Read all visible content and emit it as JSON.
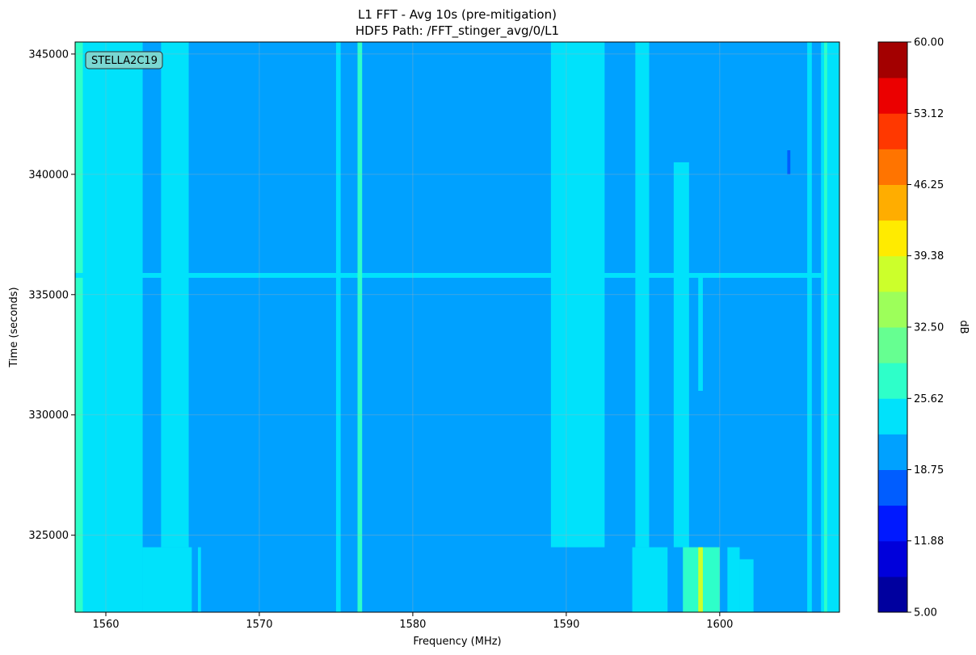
{
  "chart_data": {
    "type": "heatmap",
    "title": "L1 FFT - Avg 10s (pre-mitigation)",
    "subtitle": "HDF5 Path: /FFT_stinger_avg/0/L1",
    "xlabel": "Frequency (MHz)",
    "ylabel": "Time (seconds)",
    "xlim": [
      1558.0,
      1607.8
    ],
    "ylim": [
      321800,
      345500
    ],
    "x_ticks": [
      1560,
      1570,
      1580,
      1590,
      1600
    ],
    "y_ticks": [
      325000,
      330000,
      335000,
      340000,
      345000
    ],
    "grid": true,
    "annotation": "STELLA2C19",
    "background_value": 21.5,
    "colorbar": {
      "label": "dB",
      "range": [
        5.0,
        60.0
      ],
      "ticks": [
        "5.00",
        "11.88",
        "18.75",
        "25.62",
        "32.50",
        "39.38",
        "46.25",
        "53.12",
        "60.00"
      ],
      "levels": 16,
      "colors": [
        "#00009f",
        "#0000db",
        "#0019ff",
        "#005dff",
        "#00a1ff",
        "#00e2fb",
        "#2effc9",
        "#66ff91",
        "#9dff5a",
        "#ccff2b",
        "#ffeb00",
        "#ffad00",
        "#ff7400",
        "#ff3800",
        "#eb0000",
        "#a30000"
      ]
    },
    "features": [
      {
        "x": [
          1558.0,
          1562.4
        ],
        "t": [
          321800,
          345500
        ],
        "value": 24.5
      },
      {
        "x": [
          1558.0,
          1558.5
        ],
        "t": [
          321800,
          345500
        ],
        "value": 27.0
      },
      {
        "x": [
          1562.4,
          1565.6
        ],
        "t": [
          321800,
          324500
        ],
        "value": 24.0
      },
      {
        "x": [
          1566.0,
          1566.2
        ],
        "t": [
          321800,
          324500
        ],
        "value": 24.0
      },
      {
        "x": [
          1558.0,
          1607.8
        ],
        "t": [
          335700,
          335900
        ],
        "value": 24.0
      },
      {
        "x": [
          1563.6,
          1565.4
        ],
        "t": [
          324500,
          345500
        ],
        "value": 22.8
      },
      {
        "x": [
          1575.0,
          1575.3
        ],
        "t": [
          321800,
          345500
        ],
        "value": 24.0
      },
      {
        "x": [
          1576.4,
          1576.7
        ],
        "t": [
          321800,
          345500
        ],
        "value": 26.0
      },
      {
        "x": [
          1589.0,
          1592.5
        ],
        "t": [
          324500,
          345500
        ],
        "value": 23.5
      },
      {
        "x": [
          1590.2,
          1591.4
        ],
        "t": [
          324500,
          345500
        ],
        "value": 25.0
      },
      {
        "x": [
          1594.5,
          1595.4
        ],
        "t": [
          324500,
          345500
        ],
        "value": 23.0
      },
      {
        "x": [
          1597.0,
          1598.0
        ],
        "t": [
          324500,
          340500
        ],
        "value": 22.8
      },
      {
        "x": [
          1594.3,
          1596.6
        ],
        "t": [
          321800,
          324500
        ],
        "value": 24.5
      },
      {
        "x": [
          1597.6,
          1600.0
        ],
        "t": [
          321800,
          324500
        ],
        "value": 27.0
      },
      {
        "x": [
          1598.6,
          1598.9
        ],
        "t": [
          321800,
          324500
        ],
        "value": 36.0
      },
      {
        "x": [
          1598.6,
          1598.9
        ],
        "t": [
          331000,
          335800
        ],
        "value": 24.0
      },
      {
        "x": [
          1600.5,
          1601.3
        ],
        "t": [
          321800,
          324500
        ],
        "value": 24.0
      },
      {
        "x": [
          1601.3,
          1602.2
        ],
        "t": [
          321800,
          324000
        ],
        "value": 23.5
      },
      {
        "x": [
          1605.7,
          1606.0
        ],
        "t": [
          321800,
          345500
        ],
        "value": 24.5
      },
      {
        "x": [
          1606.6,
          1607.8
        ],
        "t": [
          321800,
          345500
        ],
        "value": 24.5
      },
      {
        "x": [
          1606.8,
          1607.0
        ],
        "t": [
          321800,
          345500
        ],
        "value": 28.0
      },
      {
        "x": [
          1604.4,
          1604.6
        ],
        "t": [
          340000,
          341000
        ],
        "value": 16.5
      }
    ]
  }
}
